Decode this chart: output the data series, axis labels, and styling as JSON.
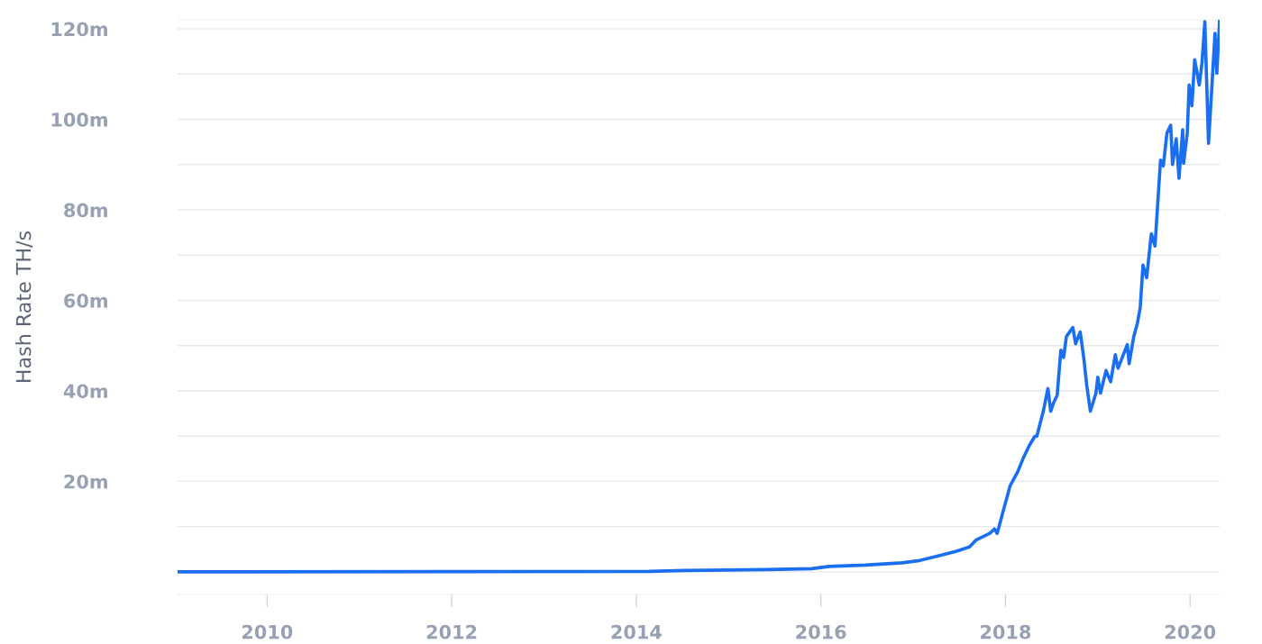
{
  "chart_data": {
    "type": "line",
    "ylabel": "Hash Rate TH/s",
    "legend": false,
    "grid": "y",
    "marker": "none",
    "line_style": "solid",
    "xlim": [
      2009.03,
      2020.32
    ],
    "xticks": [
      2010,
      2012,
      2014,
      2016,
      2018,
      2020
    ],
    "ylim": [
      -5,
      122
    ],
    "yticks": [
      {
        "value": 0,
        "label": null
      },
      {
        "value": 10,
        "label": null
      },
      {
        "value": 20,
        "label": "20m"
      },
      {
        "value": 30,
        "label": null
      },
      {
        "value": 40,
        "label": "40m"
      },
      {
        "value": 50,
        "label": null
      },
      {
        "value": 60,
        "label": "60m"
      },
      {
        "value": 70,
        "label": null
      },
      {
        "value": 80,
        "label": "80m"
      },
      {
        "value": 90,
        "label": null
      },
      {
        "value": 100,
        "label": "100m"
      },
      {
        "value": 110,
        "label": null
      },
      {
        "value": 120,
        "label": "120m"
      }
    ],
    "series": [
      {
        "color": "#1a6ef0",
        "x": [
          2009.03,
          2014.14,
          2014.53,
          2015.41,
          2015.9,
          2016.09,
          2016.48,
          2016.88,
          2017.07,
          2017.27,
          2017.46,
          2017.61,
          2017.68,
          2017.83,
          2017.88,
          2017.91,
          2017.97,
          2018.05,
          2018.13,
          2018.19,
          2018.26,
          2018.32,
          2018.34,
          2018.41,
          2018.46,
          2018.49,
          2018.52,
          2018.56,
          2018.6,
          2018.63,
          2018.66,
          2018.73,
          2018.76,
          2018.81,
          2018.85,
          2018.88,
          2018.92,
          2018.98,
          2019.0,
          2019.03,
          2019.09,
          2019.14,
          2019.19,
          2019.22,
          2019.32,
          2019.34,
          2019.39,
          2019.43,
          2019.46,
          2019.49,
          2019.53,
          2019.58,
          2019.62,
          2019.68,
          2019.71,
          2019.75,
          2019.79,
          2019.81,
          2019.85,
          2019.88,
          2019.92,
          2019.93,
          2019.97,
          2019.99,
          2020.02,
          2020.05,
          2020.1,
          2020.13,
          2020.16,
          2020.2,
          2020.23,
          2020.27,
          2020.29,
          2020.32
        ],
        "values": [
          0,
          0.1,
          0.3,
          0.5,
          0.7,
          1.2,
          1.5,
          2,
          2.5,
          3.5,
          4.5,
          5.5,
          7,
          8.5,
          9.5,
          8.5,
          13,
          19,
          22,
          25,
          28,
          30,
          30,
          35.5,
          40.5,
          35.5,
          37.3,
          39,
          49,
          47.4,
          52,
          54,
          50.4,
          53,
          47,
          41.3,
          35.5,
          39.5,
          43,
          39.5,
          44.5,
          42,
          48,
          45,
          50.2,
          46,
          52,
          55,
          58.4,
          67.8,
          65,
          74.7,
          72,
          91,
          89.7,
          97,
          98.7,
          90,
          95.7,
          87,
          97.7,
          90.3,
          97,
          107.6,
          103,
          113.2,
          107.6,
          112.6,
          121.6,
          94.7,
          105,
          119,
          110.2,
          122
        ]
      }
    ]
  }
}
